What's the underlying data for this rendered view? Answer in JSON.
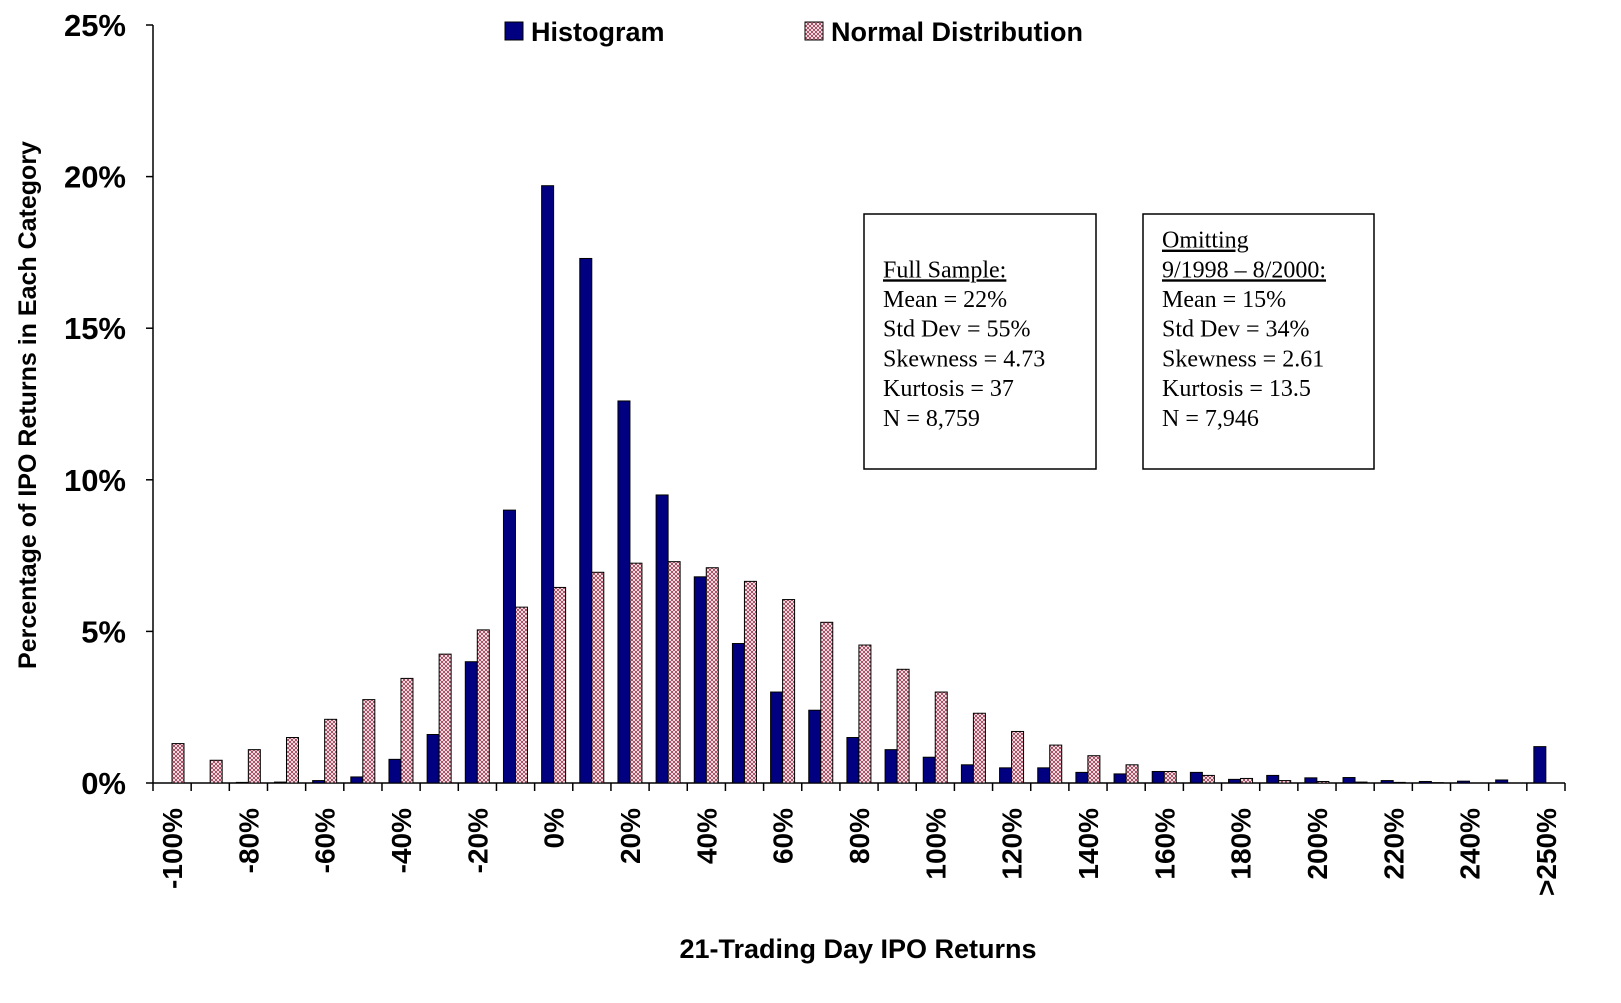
{
  "chart_data": {
    "type": "bar",
    "x_label": "21-Trading Day IPO Returns",
    "y_label": "Percentage of IPO Returns in Each Category",
    "categories": [
      "-100%",
      null,
      "-80%",
      null,
      "-60%",
      null,
      "-40%",
      null,
      "-20%",
      null,
      "0%",
      null,
      "20%",
      null,
      "40%",
      null,
      "60%",
      null,
      "80%",
      null,
      "100%",
      null,
      "120%",
      null,
      "140%",
      null,
      "160%",
      null,
      "180%",
      null,
      "200%",
      null,
      "220%",
      null,
      "240%",
      null,
      ">250%"
    ],
    "series": [
      {
        "name": "Histogram",
        "color": "#000080",
        "fill": "solid",
        "values": [
          0,
          0,
          0.02,
          0.03,
          0.08,
          0.2,
          0.78,
          1.6,
          4.0,
          9.0,
          19.7,
          17.3,
          12.6,
          9.5,
          6.8,
          4.6,
          3.0,
          2.4,
          1.5,
          1.1,
          0.85,
          0.6,
          0.5,
          0.5,
          0.35,
          0.3,
          0.38,
          0.35,
          0.12,
          0.25,
          0.17,
          0.18,
          0.08,
          0.05,
          0.06,
          0.1,
          1.2
        ]
      },
      {
        "name": "Normal Distribution",
        "color": "#a0304a",
        "fill": "crosshatch",
        "values": [
          1.3,
          0.75,
          1.1,
          1.5,
          2.1,
          2.75,
          3.45,
          4.25,
          5.05,
          5.8,
          6.45,
          6.95,
          7.25,
          7.3,
          7.1,
          6.65,
          6.05,
          5.3,
          4.55,
          3.75,
          3.0,
          2.3,
          1.7,
          1.25,
          0.9,
          0.6,
          0.38,
          0.25,
          0.15,
          0.08,
          0.05,
          0.03,
          0.02,
          0.01,
          0,
          0,
          0
        ]
      }
    ],
    "ylim": [
      0,
      25
    ],
    "yticks": [
      {
        "value": 0,
        "label": "0%"
      },
      {
        "value": 5,
        "label": "5%"
      },
      {
        "value": 10,
        "label": "10%"
      },
      {
        "value": 15,
        "label": "15%"
      },
      {
        "value": 20,
        "label": "20%"
      },
      {
        "value": 25,
        "label": "25%"
      }
    ],
    "legend": "top",
    "annotations": [
      {
        "heading": [
          "Full Sample:"
        ],
        "lines": [
          "Mean = 22%",
          "Std Dev = 55%",
          "Skewness = 4.73",
          "Kurtosis = 37",
          "N = 8,759"
        ]
      },
      {
        "heading": [
          "Omitting",
          "9/1998 – 8/2000:"
        ],
        "lines": [
          "Mean = 15%",
          "Std Dev = 34%",
          "Skewness = 2.61",
          "Kurtosis = 13.5",
          "N = 7,946"
        ]
      }
    ]
  }
}
